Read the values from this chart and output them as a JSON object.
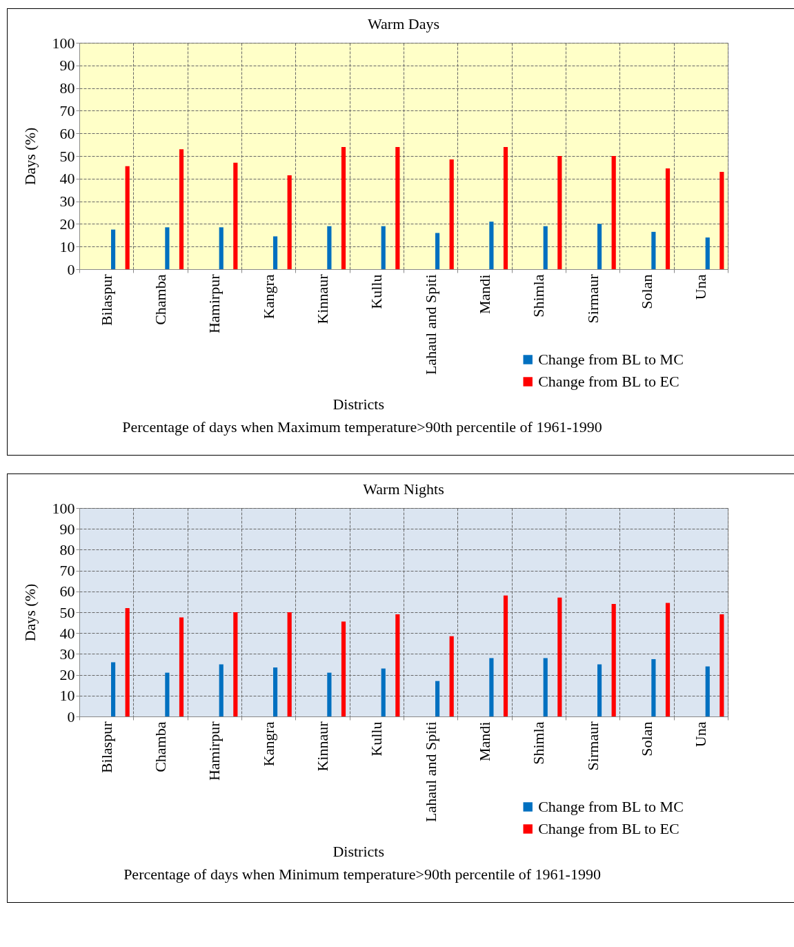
{
  "chart_data": [
    {
      "type": "bar",
      "title": "Warm Days",
      "xlabel": "Districts",
      "ylabel": "Days (%)",
      "categories": [
        "Bilaspur",
        "Chamba",
        "Hamirpur",
        "Kangra",
        "Kinnaur",
        "Kullu",
        "Lahaul and Spiti",
        "Mandi",
        "Shimla",
        "Sirmaur",
        "Solan",
        "Una"
      ],
      "series": [
        {
          "name": "Change from BL to MC",
          "color": "#0070c0",
          "values": [
            17.5,
            18.5,
            18.5,
            14.5,
            19,
            19,
            16,
            21,
            19,
            20,
            16.5,
            14
          ]
        },
        {
          "name": "Change from BL to EC",
          "color": "#ff0000",
          "values": [
            45.5,
            53,
            47,
            41.5,
            54,
            54,
            48.5,
            54,
            50,
            50,
            44.5,
            43
          ]
        }
      ],
      "ylim": [
        0,
        100
      ],
      "yticks": [
        0,
        10,
        20,
        30,
        40,
        50,
        60,
        70,
        80,
        90,
        100
      ],
      "grid": true,
      "legend": "bottom right",
      "annotations": [
        "Percentage of days when Maximum temperature>90th percentile of 1961-1990"
      ]
    },
    {
      "type": "bar",
      "title": "Warm Nights",
      "xlabel": "Districts",
      "ylabel": "Days (%)",
      "categories": [
        "Bilaspur",
        "Chamba",
        "Hamirpur",
        "Kangra",
        "Kinnaur",
        "Kullu",
        "Lahaul and Spiti",
        "Mandi",
        "Shimla",
        "Sirmaur",
        "Solan",
        "Una"
      ],
      "series": [
        {
          "name": "Change from BL to MC",
          "color": "#0070c0",
          "values": [
            26,
            21,
            25,
            23.5,
            21,
            23,
            17,
            28,
            28,
            25,
            27.5,
            24
          ]
        },
        {
          "name": "Change from BL to EC",
          "color": "#ff0000",
          "values": [
            52,
            47.5,
            50,
            50,
            45.5,
            49,
            38.5,
            58,
            57,
            54,
            54.5,
            49
          ]
        }
      ],
      "ylim": [
        0,
        100
      ],
      "yticks": [
        0,
        10,
        20,
        30,
        40,
        50,
        60,
        70,
        80,
        90,
        100
      ],
      "grid": true,
      "legend": "bottom right",
      "annotations": [
        "Percentage of days when Minimum temperature>90th percentile of 1961-1990"
      ]
    }
  ]
}
